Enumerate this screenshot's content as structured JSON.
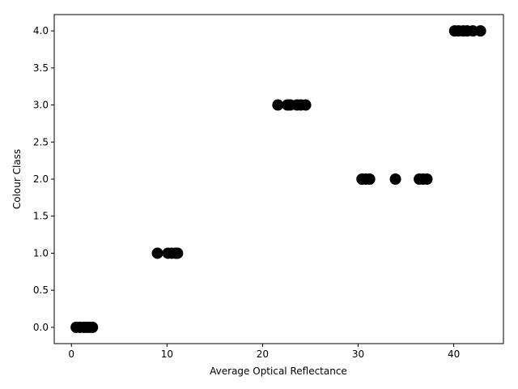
{
  "chart_data": {
    "type": "scatter",
    "title": "",
    "xlabel": "Average Optical Reflectance",
    "ylabel": "Colour Class",
    "xlim": [
      -1.8,
      45.2
    ],
    "ylim": [
      -0.22,
      4.22
    ],
    "xticks": [
      0,
      10,
      20,
      30,
      40
    ],
    "yticks": [
      0.0,
      0.5,
      1.0,
      1.5,
      2.0,
      2.5,
      3.0,
      3.5,
      4.0
    ],
    "xtick_labels": [
      "0",
      "10",
      "20",
      "30",
      "40"
    ],
    "ytick_labels": [
      "0.0",
      "0.5",
      "1.0",
      "1.5",
      "2.0",
      "2.5",
      "3.0",
      "3.5",
      "4.0"
    ],
    "grid": false,
    "legend": false,
    "marker_color": "#000000",
    "series": [
      {
        "x": [
          0.5,
          0.9,
          1.3,
          1.6,
          1.9,
          2.2,
          9.0,
          10.1,
          10.5,
          10.9,
          11.1,
          21.6,
          22.6,
          22.9,
          23.6,
          24.0,
          24.5,
          30.4,
          30.8,
          31.2,
          33.9,
          36.4,
          36.8,
          37.2,
          40.1,
          40.5,
          41.0,
          41.4,
          42.0,
          42.8
        ],
        "y": [
          0,
          0,
          0,
          0,
          0,
          0,
          1,
          1,
          1,
          1,
          1,
          3,
          3,
          3,
          3,
          3,
          3,
          2,
          2,
          2,
          2,
          2,
          2,
          2,
          4,
          4,
          4,
          4,
          4,
          4
        ]
      }
    ]
  }
}
